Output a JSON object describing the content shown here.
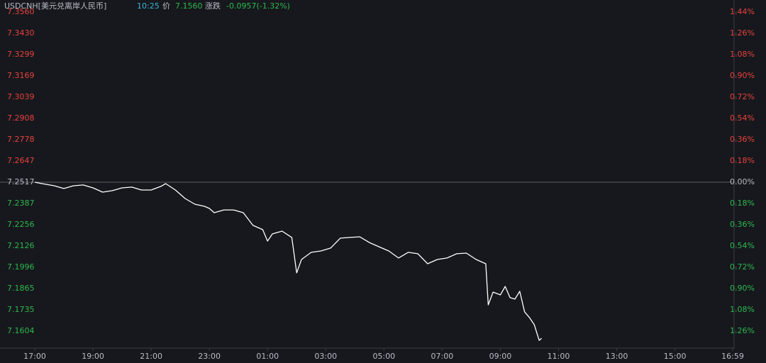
{
  "header": {
    "symbol": "USDCNH[美元兑离岸人民币]",
    "time": "10:25",
    "price_label": "价",
    "price": "7.1560",
    "change_label": "涨跌",
    "change": "-0.0957(-1.32%)"
  },
  "chart_data": {
    "type": "line",
    "x": [
      "17:00",
      "17:15",
      "17:40",
      "18:00",
      "18:20",
      "18:40",
      "19:00",
      "19:20",
      "19:40",
      "20:00",
      "20:20",
      "20:40",
      "21:00",
      "21:20",
      "21:30",
      "21:50",
      "22:10",
      "22:30",
      "22:50",
      "23:00",
      "23:10",
      "23:30",
      "23:50",
      "00:10",
      "00:30",
      "00:50",
      "01:00",
      "01:10",
      "01:30",
      "01:50",
      "02:00",
      "02:10",
      "02:30",
      "02:50",
      "03:10",
      "03:30",
      "03:50",
      "04:10",
      "04:30",
      "04:50",
      "05:10",
      "05:30",
      "05:50",
      "06:10",
      "06:30",
      "06:50",
      "07:10",
      "07:30",
      "07:50",
      "08:10",
      "08:30",
      "08:35",
      "08:45",
      "09:00",
      "09:10",
      "09:20",
      "09:30",
      "09:40",
      "09:50",
      "10:00",
      "10:10",
      "10:20",
      "10:25"
    ],
    "values": [
      7.2517,
      7.2508,
      7.2495,
      7.2478,
      7.2495,
      7.25,
      7.2482,
      7.2456,
      7.2465,
      7.2482,
      7.2487,
      7.2469,
      7.2469,
      7.2491,
      7.2508,
      7.2469,
      7.2417,
      7.2382,
      7.2369,
      7.2356,
      7.233,
      7.2347,
      7.2347,
      7.233,
      7.2252,
      7.2226,
      7.2156,
      7.22,
      7.2217,
      7.2178,
      7.1961,
      7.2043,
      7.2087,
      7.2095,
      7.2113,
      7.2174,
      7.2178,
      7.2182,
      7.2147,
      7.2121,
      7.2095,
      7.2052,
      7.2087,
      7.2078,
      7.2017,
      7.2043,
      7.2052,
      7.2078,
      7.2082,
      7.2043,
      7.2017,
      7.1765,
      7.1843,
      7.1826,
      7.1878,
      7.1809,
      7.18,
      7.1848,
      7.1722,
      7.1687,
      7.1643,
      7.1547,
      7.156
    ],
    "xlim": [
      "17:00",
      "16:59"
    ],
    "xticks": [
      "17:00",
      "19:00",
      "21:00",
      "23:00",
      "01:00",
      "03:00",
      "05:00",
      "07:00",
      "09:00",
      "11:00",
      "13:00",
      "15:00",
      "16:59"
    ],
    "ylim": [
      7.1504,
      7.356
    ],
    "yticks": [
      {
        "value": 7.356,
        "label": "7.3560"
      },
      {
        "value": 7.343,
        "label": "7.3430"
      },
      7.3299,
      7.3169,
      7.3039,
      7.2908,
      7.2778,
      7.2647,
      7.2517,
      7.2387,
      7.2256,
      7.2126,
      7.1996,
      7.1865,
      7.1735,
      7.1604
    ],
    "y2lim": [
      -1.398,
      1.44
    ],
    "y2ticks": [
      {
        "value": 1.44,
        "label": "1.44%"
      },
      {
        "value": 1.26,
        "label": "1.26%"
      },
      {
        "value": 1.08,
        "label": "1.08%"
      },
      {
        "value": 0.9,
        "label": "0.90%"
      },
      {
        "value": 0.72,
        "label": "0.72%"
      },
      {
        "value": 0.54,
        "label": "0.54%"
      },
      {
        "value": 0.36,
        "label": "0.36%"
      },
      {
        "value": 0.18,
        "label": "0.18%"
      },
      {
        "value": 0,
        "label": "0.00%"
      },
      {
        "value": -0.18,
        "label": "0.18%"
      },
      {
        "value": -0.36,
        "label": "0.36%"
      },
      {
        "value": -0.54,
        "label": "0.54%"
      },
      {
        "value": -0.72,
        "label": "0.72%"
      },
      {
        "value": -0.9,
        "label": "0.90%"
      },
      {
        "value": -1.08,
        "label": "1.08%"
      },
      {
        "value": -1.26,
        "label": "1.26%"
      }
    ],
    "base_line": 7.2517,
    "line_color": "#ffffff",
    "up_color": "#e8413c",
    "down_color": "#2fb84e",
    "flat_color": "#b8bcc4"
  }
}
